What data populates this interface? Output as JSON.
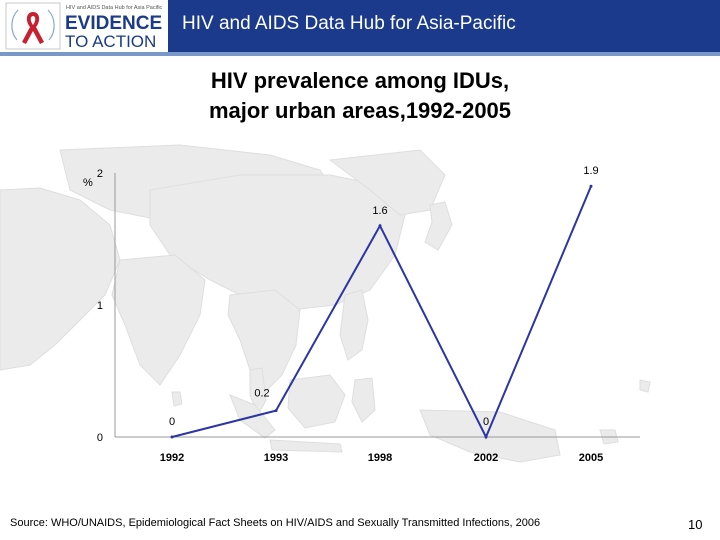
{
  "header": {
    "logo_small_text": "HIV and AIDS Data Hub for Asia Pacific",
    "logo_line1": "EVIDENCE",
    "logo_line2": "TO ACTION",
    "banner_title": "HIV and AIDS Data Hub for Asia-Pacific"
  },
  "chart_data": {
    "type": "line",
    "title_lines": [
      "HIV prevalence among IDUs,",
      "major urban areas,1992-2005"
    ],
    "ylabel": "%",
    "xlabel": "",
    "categories": [
      "1992",
      "1993",
      "1998",
      "2002",
      "2005"
    ],
    "series": [
      {
        "values": [
          0,
          0.2,
          1.6,
          0,
          1.9
        ],
        "color": "#2b35a3"
      }
    ],
    "data_labels": [
      "0",
      "0.2",
      "1.6",
      "0",
      "1.9"
    ],
    "yticks": [
      0,
      1,
      2
    ],
    "ytick_labels": [
      "0",
      "1",
      "2"
    ],
    "ylim": [
      0,
      2
    ],
    "grid": false,
    "legend": "none",
    "axis_color": "#999999",
    "background": "faded map of Asia-Pacific"
  },
  "footer": {
    "source": "Source: WHO/UNAIDS, Epidemiological Fact Sheets on HIV/AIDS and Sexually Transmitted Infections, 2006",
    "page_number": "10"
  }
}
